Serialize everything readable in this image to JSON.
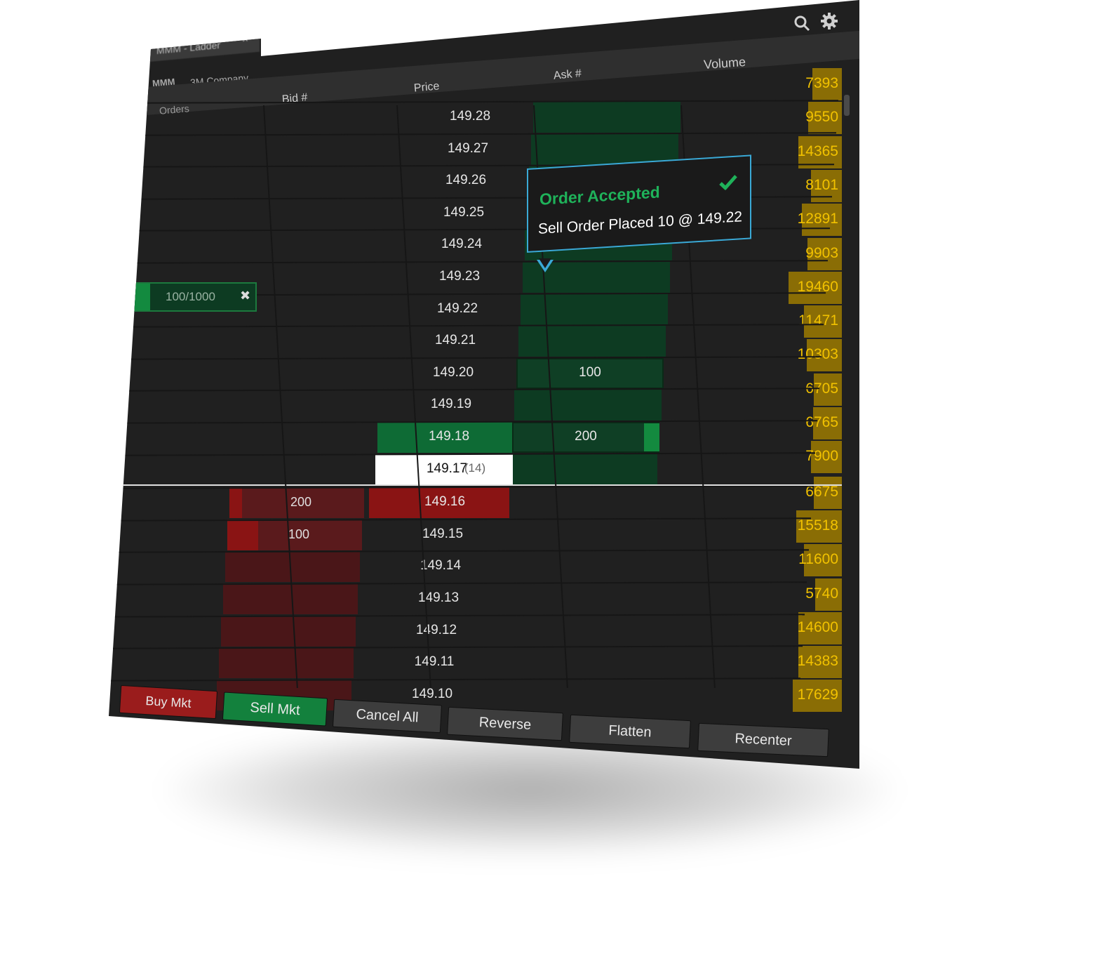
{
  "window": {
    "tab_title": "MMM - Ladder",
    "tab_close": "×",
    "symbol": "MMM",
    "company": "3M Company"
  },
  "toolbar": {
    "icons": [
      "search-icon",
      "gear-icon"
    ]
  },
  "columns": {
    "orders": "Orders",
    "bid": "Bid #",
    "price": "Price",
    "ask": "Ask #",
    "volume": "Volume"
  },
  "ladder": {
    "prices": [
      "149.28",
      "149.27",
      "149.26",
      "149.25",
      "149.24",
      "149.23",
      "149.22",
      "149.21",
      "149.20",
      "149.19",
      "149.18",
      "149.17",
      "149.16",
      "149.15",
      "149.14",
      "149.13",
      "149.12",
      "149.11",
      "149.10"
    ],
    "volumes": [
      "7393",
      "9550",
      "14365",
      "8101",
      "12891",
      "9903",
      "19460",
      "11471",
      "10303",
      "6705",
      "6765",
      "7900",
      "6675",
      "15518",
      "11600",
      "5740",
      "14600",
      "14383",
      "17629"
    ],
    "ask_sizes": {
      "149.20": "100",
      "149.18": "200"
    },
    "bid_sizes": {
      "149.16": "200",
      "149.15": "100"
    },
    "last_price": "149.17",
    "last_count": "(14)",
    "order_working": "100/1000",
    "order_cancel": "✖"
  },
  "toast": {
    "title": "Order Accepted",
    "message": "Sell Order Placed 10 @ 149.22",
    "icon": "checkmark-icon"
  },
  "buttons": {
    "buy_mkt": "Buy Mkt",
    "sell_mkt": "Sell Mkt",
    "cancel_all": "Cancel All",
    "reverse": "Reverse",
    "flatten": "Flatten",
    "recenter": "Recenter"
  },
  "colors": {
    "ask_bg": "#0d3b22",
    "bid_bg": "#4a1618",
    "best_ask": "#0e6b35",
    "best_bid": "#8a1414",
    "volume_text": "#f2c200",
    "toast_border": "#3aa9d6",
    "toast_title": "#1fb25a"
  }
}
